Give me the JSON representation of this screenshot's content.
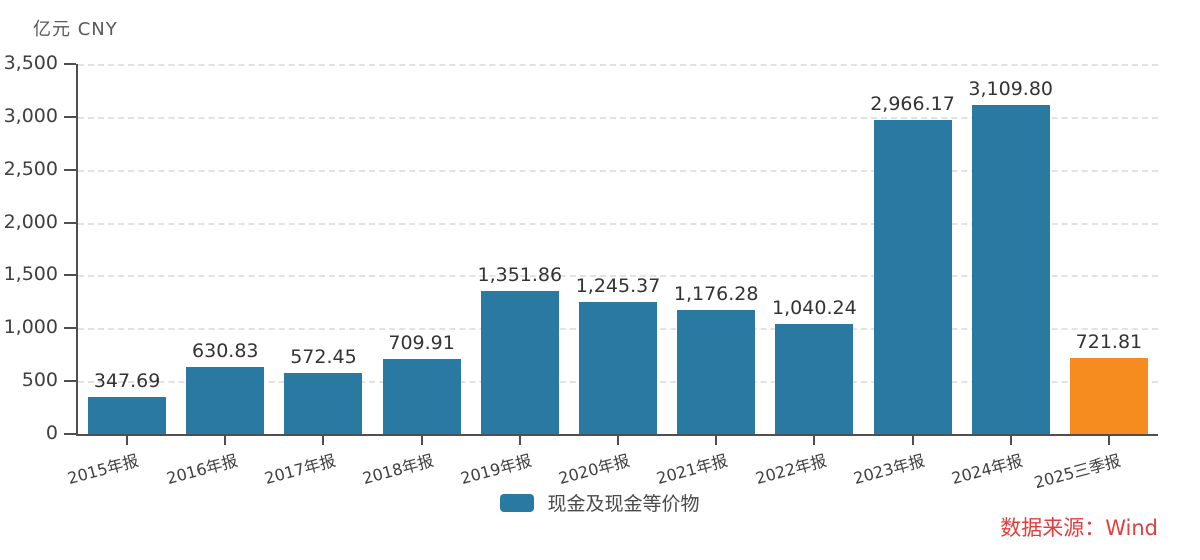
{
  "chart_data": {
    "type": "bar",
    "title": "",
    "xlabel": "",
    "ylabel": "亿元 CNY",
    "categories": [
      "2015年报",
      "2016年报",
      "2017年报",
      "2018年报",
      "2019年报",
      "2020年报",
      "2021年报",
      "2022年报",
      "2023年报",
      "2024年报",
      "2025三季报"
    ],
    "values": [
      347.69,
      630.83,
      572.45,
      709.91,
      1351.86,
      1245.37,
      1176.28,
      1040.24,
      2966.17,
      3109.8,
      721.81
    ],
    "value_labels": [
      "347.69",
      "630.83",
      "572.45",
      "709.91",
      "1,351.86",
      "1,245.37",
      "1,176.28",
      "1,040.24",
      "2,966.17",
      "3,109.80",
      "721.81"
    ],
    "ylim": [
      0,
      3500
    ],
    "y_tick_values": [
      0,
      500,
      1000,
      1500,
      2000,
      2500,
      3000,
      3500
    ],
    "y_tick_labels": [
      "0",
      "500",
      "1,000",
      "1,500",
      "2,000",
      "2,500",
      "3,000",
      "3,500"
    ],
    "grid": "horizontal-dashed",
    "legend": [
      {
        "label": "现金及现金等价物",
        "color": "#2979A3"
      }
    ],
    "legend_position": "bottom-center",
    "bar_color_default": "#2979A3",
    "bar_color_last": "#F68B1F",
    "highlight_last_bar": true
  },
  "footer": {
    "source_label": "数据来源：Wind",
    "source_color": "#E23E3E"
  },
  "colors": {
    "axis": "#4f4f4f",
    "gridline": "#e2e2e2",
    "tick_text": "#3f3f3f",
    "value_text": "#333333",
    "unit_text": "#595959"
  }
}
